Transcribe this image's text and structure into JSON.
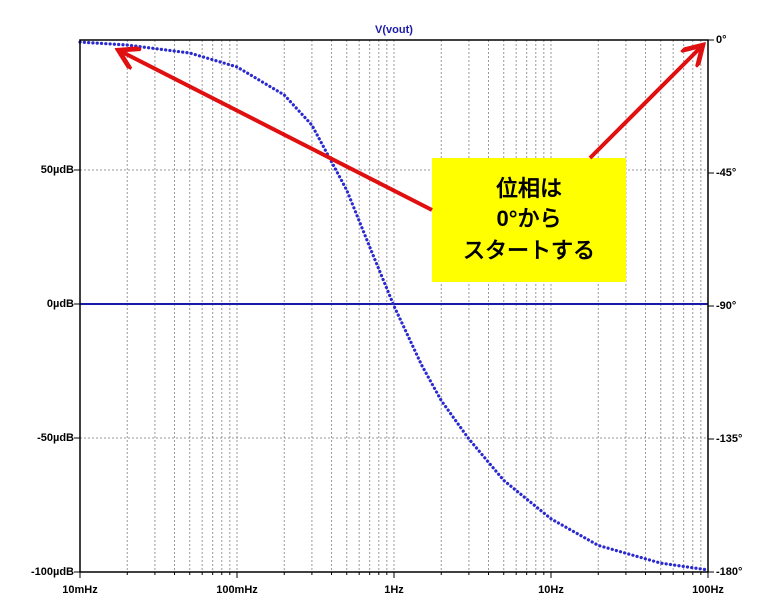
{
  "chart_data": {
    "type": "line",
    "title": "V(vout)",
    "xscale": "log",
    "grid": true,
    "x": [
      0.01,
      0.02,
      0.05,
      0.1,
      0.2,
      0.3,
      0.5,
      0.7,
      1,
      1.5,
      2,
      3,
      5,
      10,
      20,
      50,
      100
    ],
    "series": [
      {
        "color": "#1a1aa8",
        "axis": "y",
        "style": "solid",
        "values": [
          0,
          0,
          0,
          0,
          0,
          0,
          0,
          0,
          0,
          0,
          0,
          0,
          0,
          0,
          0,
          0,
          0
        ]
      },
      {
        "color": "#2a2ad0",
        "axis": "y2",
        "style": "dotted",
        "values": [
          -0.7,
          -1.7,
          -4.4,
          -9.1,
          -18.6,
          -28.8,
          -50.8,
          -70,
          -90,
          -110,
          -122,
          -135,
          -149,
          -162,
          -171,
          -177,
          -179.3
        ]
      }
    ],
    "xlim": [
      0.01,
      100
    ],
    "xticks": [
      {
        "value": 0.01,
        "label": "10mHz"
      },
      {
        "value": 0.1,
        "label": "100mHz"
      },
      {
        "value": 1,
        "label": "1Hz"
      },
      {
        "value": 10,
        "label": "10Hz"
      },
      {
        "value": 100,
        "label": "100Hz"
      }
    ],
    "xminorticks": [
      0.02,
      0.03,
      0.04,
      0.05,
      0.06,
      0.07,
      0.08,
      0.09,
      0.2,
      0.3,
      0.4,
      0.5,
      0.6,
      0.7,
      0.8,
      0.9,
      2,
      3,
      4,
      5,
      6,
      7,
      8,
      9,
      20,
      30,
      40,
      50,
      60,
      70,
      80,
      90
    ],
    "ylim": [
      -100,
      98.5
    ],
    "yticks": [
      {
        "value": -100,
        "label": "-100µdB"
      },
      {
        "value": -50,
        "label": "-50µdB"
      },
      {
        "value": 0,
        "label": "0µdB"
      },
      {
        "value": 50,
        "label": "50µdB"
      }
    ],
    "y2lim": [
      -180,
      0
    ],
    "y2ticks": [
      {
        "value": -180,
        "label": "-180°"
      },
      {
        "value": -135,
        "label": "-135°"
      },
      {
        "value": -90,
        "label": "-90°"
      },
      {
        "value": -45,
        "label": "-45°"
      },
      {
        "value": 0,
        "label": "0°"
      }
    ],
    "annotation": [
      "位相は",
      "0°から",
      "スタートする"
    ]
  }
}
